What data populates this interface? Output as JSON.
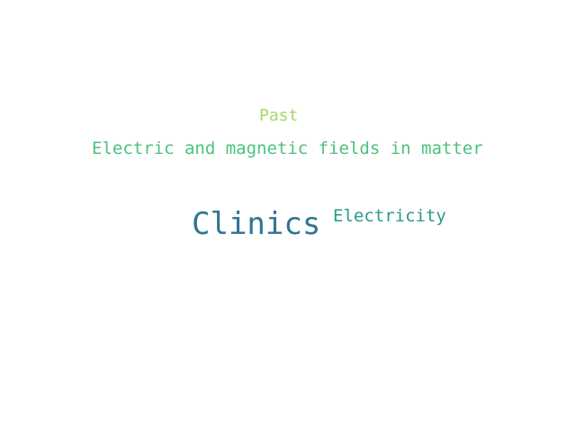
{
  "word_cloud": {
    "words": [
      {
        "text": "Past",
        "color": "#a5d867"
      },
      {
        "text": "Electric and magnetic fields in matter",
        "color": "#4cc27e"
      },
      {
        "text": "Clinics",
        "color": "#2f7590"
      },
      {
        "text": "Electricity",
        "color": "#2a9a8d"
      }
    ]
  }
}
